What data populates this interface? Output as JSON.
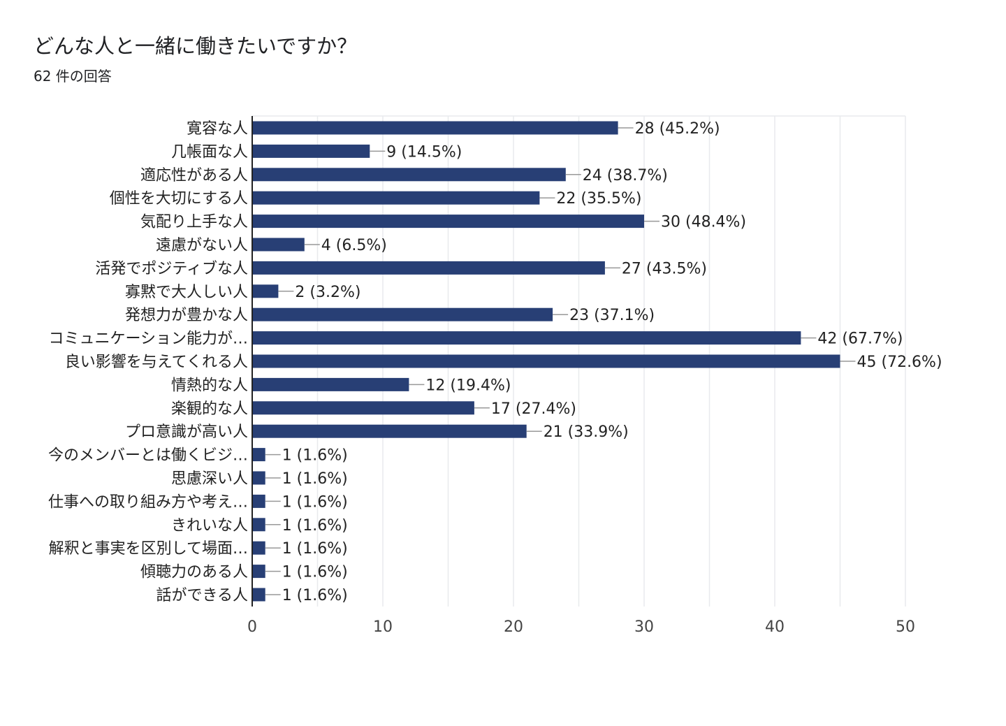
{
  "question": {
    "title": "どんな人と一緒に働きたいですか？",
    "response_count": "62 件の回答"
  },
  "colors": {
    "bar": "#283f75",
    "grid": "#e8eaed",
    "axis": "#222222",
    "leader": "#999999"
  },
  "chart_data": {
    "type": "bar",
    "orientation": "horizontal",
    "title": "どんな人と一緒に働きたいですか？",
    "subtitle": "62 件の回答",
    "xlabel": "",
    "ylabel": "",
    "xlim": [
      0,
      50
    ],
    "ticks": [
      0,
      10,
      20,
      30,
      40,
      50
    ],
    "minor_grid_step": 5,
    "grid": true,
    "categories": [
      "寛容な人",
      "几帳面な人",
      "適応性がある人",
      "個性を大切にする人",
      "気配り上手な人",
      "遠慮がない人",
      "活発でポジティブな人",
      "寡黙で大人しい人",
      "発想力が豊かな人",
      "コミュニケーション能力が…",
      "良い影響を与えてくれる人",
      "情熱的な人",
      "楽観的な人",
      "プロ意識が高い人",
      "今のメンバーとは働くビジ…",
      "思慮深い人",
      "仕事への取り組み方や考え…",
      "きれいな人",
      "解釈と事実を区別して場面…",
      "傾聴力のある人",
      "話ができる人"
    ],
    "values": [
      28,
      9,
      24,
      22,
      30,
      4,
      27,
      2,
      23,
      42,
      45,
      12,
      17,
      21,
      1,
      1,
      1,
      1,
      1,
      1,
      1
    ],
    "value_labels": [
      "28 (45.2%)",
      "9 (14.5%)",
      "24 (38.7%)",
      "22 (35.5%)",
      "30 (48.4%)",
      "4 (6.5%)",
      "27 (43.5%)",
      "2 (3.2%)",
      "23 (37.1%)",
      "42 (67.7%)",
      "45 (72.6%)",
      "12 (19.4%)",
      "17 (27.4%)",
      "21 (33.9%)",
      "1 (1.6%)",
      "1 (1.6%)",
      "1 (1.6%)",
      "1 (1.6%)",
      "1 (1.6%)",
      "1 (1.6%)",
      "1 (1.6%)"
    ]
  }
}
